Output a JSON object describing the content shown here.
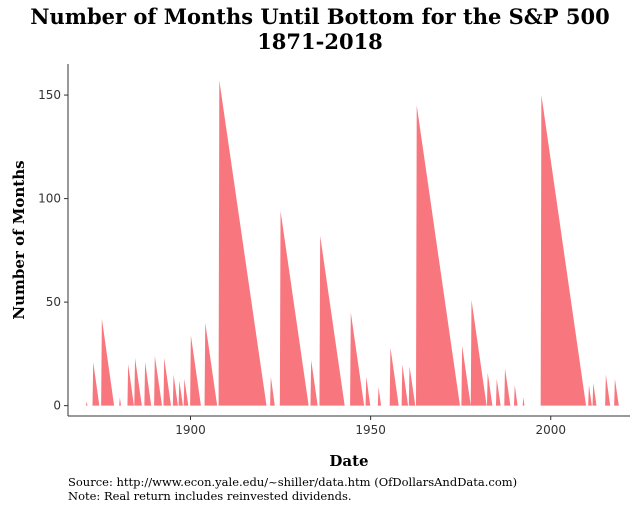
{
  "chart_data": {
    "type": "area",
    "title": "Number of Months Until Bottom for the S&P 500",
    "subtitle": "1871-2018",
    "xlabel": "Date",
    "ylabel": "Number of Months",
    "xlim": [
      1866,
      2022
    ],
    "ylim": [
      -5,
      165
    ],
    "x_ticks": [
      1900,
      1950,
      2000
    ],
    "y_ticks": [
      0,
      50,
      100,
      150
    ],
    "grid": false,
    "color": "#F8767D",
    "series": [
      {
        "values": [
          [
            1871.0,
            0
          ],
          [
            1871.2,
            2
          ],
          [
            1871.4,
            0
          ],
          [
            1872.8,
            0
          ],
          [
            1873.0,
            21
          ],
          [
            1874.7,
            0
          ],
          [
            1875.2,
            0
          ],
          [
            1875.4,
            42
          ],
          [
            1878.8,
            0
          ],
          [
            1880.2,
            0
          ],
          [
            1880.4,
            4
          ],
          [
            1880.7,
            0
          ],
          [
            1882.5,
            0
          ],
          [
            1882.7,
            20
          ],
          [
            1884.3,
            0
          ],
          [
            1884.4,
            0
          ],
          [
            1884.6,
            23
          ],
          [
            1886.5,
            0
          ],
          [
            1887.2,
            0
          ],
          [
            1887.4,
            21
          ],
          [
            1889.1,
            0
          ],
          [
            1889.9,
            0
          ],
          [
            1890.1,
            24
          ],
          [
            1892.1,
            0
          ],
          [
            1892.5,
            0
          ],
          [
            1892.7,
            23
          ],
          [
            1894.6,
            0
          ],
          [
            1895.1,
            0
          ],
          [
            1895.3,
            15
          ],
          [
            1896.5,
            0
          ],
          [
            1896.7,
            0
          ],
          [
            1896.9,
            12
          ],
          [
            1897.9,
            0
          ],
          [
            1898.1,
            0
          ],
          [
            1898.3,
            13
          ],
          [
            1899.4,
            0
          ],
          [
            1899.9,
            0
          ],
          [
            1900.1,
            34
          ],
          [
            1902.9,
            0
          ],
          [
            1903.9,
            0
          ],
          [
            1904.1,
            40
          ],
          [
            1907.4,
            0
          ],
          [
            1907.8,
            0
          ],
          [
            1908.0,
            157
          ],
          [
            1921.1,
            0
          ],
          [
            1922.1,
            0
          ],
          [
            1922.3,
            14
          ],
          [
            1923.4,
            0
          ],
          [
            1924.8,
            0
          ],
          [
            1925.0,
            94
          ],
          [
            1932.8,
            0
          ],
          [
            1933.3,
            0
          ],
          [
            1933.5,
            22
          ],
          [
            1935.3,
            0
          ],
          [
            1935.8,
            0
          ],
          [
            1936.0,
            82
          ],
          [
            1942.8,
            0
          ],
          [
            1944.3,
            0
          ],
          [
            1944.5,
            45
          ],
          [
            1948.2,
            0
          ],
          [
            1948.6,
            0
          ],
          [
            1948.8,
            14
          ],
          [
            1949.9,
            0
          ],
          [
            1952.0,
            0
          ],
          [
            1952.2,
            9
          ],
          [
            1952.9,
            0
          ],
          [
            1955.3,
            0
          ],
          [
            1955.5,
            28
          ],
          [
            1957.8,
            0
          ],
          [
            1958.6,
            0
          ],
          [
            1958.8,
            20
          ],
          [
            1960.4,
            0
          ],
          [
            1960.6,
            0
          ],
          [
            1960.8,
            19
          ],
          [
            1962.4,
            0
          ],
          [
            1962.6,
            0
          ],
          [
            1962.8,
            145
          ],
          [
            1974.8,
            0
          ],
          [
            1975.2,
            0
          ],
          [
            1975.4,
            29
          ],
          [
            1977.8,
            0
          ],
          [
            1977.8,
            0
          ],
          [
            1978.0,
            51
          ],
          [
            1982.2,
            0
          ],
          [
            1982.3,
            0
          ],
          [
            1982.5,
            16
          ],
          [
            1983.8,
            0
          ],
          [
            1984.8,
            0
          ],
          [
            1985.0,
            13
          ],
          [
            1986.1,
            0
          ],
          [
            1987.1,
            0
          ],
          [
            1987.3,
            18
          ],
          [
            1988.8,
            0
          ],
          [
            1989.8,
            0
          ],
          [
            1990.0,
            10
          ],
          [
            1990.8,
            0
          ],
          [
            1992.2,
            0
          ],
          [
            1992.4,
            4
          ],
          [
            1992.7,
            0
          ],
          [
            1997.2,
            0
          ],
          [
            1997.4,
            150
          ],
          [
            2009.8,
            0
          ],
          [
            2010.4,
            0
          ],
          [
            2010.6,
            10
          ],
          [
            2011.4,
            0
          ],
          [
            2011.6,
            0
          ],
          [
            2011.8,
            11
          ],
          [
            2012.7,
            0
          ],
          [
            2015.1,
            0
          ],
          [
            2015.3,
            15
          ],
          [
            2016.5,
            0
          ],
          [
            2017.6,
            0
          ],
          [
            2017.8,
            13
          ],
          [
            2018.9,
            0
          ]
        ]
      }
    ]
  },
  "source_note": "Source:  http://www.econ.yale.edu/~shiller/data.htm (OfDollarsAndData.com)",
  "footnote": "Note:  Real return includes reinvested dividends."
}
